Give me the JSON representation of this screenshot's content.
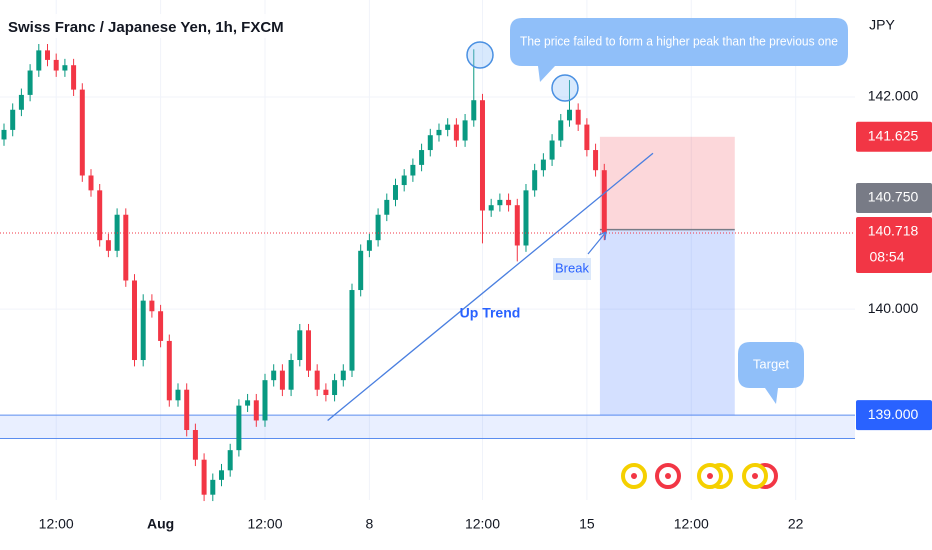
{
  "chart_data": {
    "type": "candlestick",
    "title": "Swiss Franc / Japanese Yen, 1h, FXCM",
    "currency": "JPY",
    "xlim": [
      -0.46,
      97.82
    ],
    "ylim": [
      138.2,
      142.915
    ],
    "grid": true,
    "xticks": [
      {
        "value": 6,
        "label": "12:00"
      },
      {
        "value": 18,
        "label": "Aug"
      },
      {
        "value": 30,
        "label": "12:00"
      },
      {
        "value": 42,
        "label": "8"
      },
      {
        "value": 55,
        "label": "12:00"
      },
      {
        "value": 67,
        "label": "15"
      },
      {
        "value": 79,
        "label": "12:00"
      },
      {
        "value": 91,
        "label": "22"
      }
    ],
    "yticks": [
      {
        "value": 140,
        "label": "140.000"
      },
      {
        "value": 142,
        "label": "142.000"
      }
    ],
    "up_color": "#089981",
    "down_color": "#f23645",
    "x": [
      0,
      1,
      2,
      3,
      4,
      5,
      6,
      7,
      8,
      9,
      10,
      11,
      12,
      13,
      14,
      15,
      16,
      17,
      18,
      19,
      20,
      21,
      22,
      23,
      24,
      25,
      26,
      27,
      28,
      29,
      30,
      31,
      32,
      33,
      34,
      35,
      36,
      37,
      38,
      39,
      40,
      41,
      42,
      43,
      44,
      45,
      46,
      47,
      48,
      49,
      50,
      51,
      52,
      53,
      54,
      55,
      56,
      57,
      58,
      59,
      60,
      61,
      62,
      63,
      64,
      65,
      66,
      67,
      68,
      69
    ],
    "ohlc": {
      "open": [
        141.6,
        141.69,
        141.88,
        142.02,
        142.25,
        142.44,
        142.35,
        142.25,
        142.3,
        142.07,
        141.26,
        141.12,
        140.65,
        140.55,
        140.89,
        140.27,
        139.52,
        140.08,
        139.98,
        139.7,
        139.14,
        139.24,
        138.86,
        138.58,
        138.25,
        138.39,
        138.48,
        138.67,
        139.09,
        139.14,
        138.95,
        139.33,
        139.42,
        139.24,
        139.52,
        139.8,
        139.42,
        139.24,
        139.19,
        139.33,
        139.42,
        140.18,
        140.55,
        140.65,
        140.89,
        141.03,
        141.17,
        141.26,
        141.36,
        141.5,
        141.64,
        141.69,
        141.74,
        141.59,
        141.78,
        141.97,
        140.93,
        140.98,
        141.03,
        140.98,
        140.6,
        141.12,
        141.31,
        141.41,
        141.59,
        141.78,
        141.88,
        141.74,
        141.5,
        141.31
      ],
      "high": [
        141.75,
        141.94,
        142.08,
        142.31,
        142.5,
        142.5,
        142.41,
        142.36,
        142.36,
        142.13,
        141.32,
        141.18,
        140.71,
        140.95,
        140.95,
        140.33,
        140.14,
        140.14,
        140.04,
        139.76,
        139.3,
        139.3,
        138.92,
        138.64,
        138.45,
        138.54,
        138.73,
        139.15,
        139.2,
        139.2,
        139.39,
        139.48,
        139.48,
        139.58,
        139.86,
        139.86,
        139.48,
        139.3,
        139.39,
        139.48,
        140.24,
        140.61,
        140.71,
        140.95,
        141.09,
        141.23,
        141.32,
        141.42,
        141.56,
        141.7,
        141.75,
        141.8,
        141.8,
        141.84,
        142.45,
        142.03,
        141.04,
        141.09,
        141.09,
        141.04,
        141.18,
        141.37,
        141.47,
        141.65,
        141.84,
        142.16,
        141.94,
        141.8,
        141.56,
        141.37
      ],
      "low": [
        141.54,
        141.63,
        141.82,
        141.96,
        142.19,
        142.29,
        142.19,
        142.19,
        142.01,
        141.2,
        141.06,
        140.59,
        140.49,
        140.49,
        140.21,
        139.46,
        139.46,
        139.92,
        139.64,
        139.08,
        139.08,
        138.8,
        138.52,
        138.19,
        138.19,
        138.33,
        138.42,
        138.61,
        139.03,
        138.89,
        138.89,
        139.27,
        139.18,
        139.18,
        139.46,
        139.36,
        139.18,
        139.13,
        139.13,
        139.27,
        139.36,
        140.12,
        140.49,
        140.59,
        140.83,
        140.97,
        141.11,
        141.2,
        141.3,
        141.44,
        141.58,
        141.63,
        141.53,
        141.53,
        141.72,
        140.62,
        140.87,
        140.92,
        140.92,
        140.45,
        140.54,
        141.06,
        141.25,
        141.35,
        141.53,
        141.72,
        141.68,
        141.44,
        141.25,
        140.65
      ],
      "close": [
        141.69,
        141.88,
        142.02,
        142.25,
        142.44,
        142.35,
        142.25,
        142.3,
        142.07,
        141.26,
        141.12,
        140.65,
        140.55,
        140.89,
        140.27,
        139.52,
        140.08,
        139.98,
        139.7,
        139.14,
        139.24,
        138.86,
        138.58,
        138.25,
        138.39,
        138.48,
        138.67,
        139.09,
        139.14,
        138.95,
        139.33,
        139.42,
        139.24,
        139.52,
        139.8,
        139.42,
        139.24,
        139.19,
        139.33,
        139.42,
        140.18,
        140.55,
        140.65,
        140.89,
        141.03,
        141.17,
        141.26,
        141.36,
        141.5,
        141.64,
        141.69,
        141.74,
        141.59,
        141.78,
        141.97,
        140.93,
        140.98,
        141.03,
        140.98,
        140.6,
        141.12,
        141.31,
        141.41,
        141.59,
        141.78,
        141.88,
        141.74,
        141.5,
        141.31,
        140.72
      ]
    },
    "price_labels": [
      {
        "value": 141.625,
        "label": "141.625",
        "color": "#f23645"
      },
      {
        "value": 140.75,
        "label": "140.750",
        "color": "#787b86"
      },
      {
        "value": 140.718,
        "label": "140.718",
        "color": "#f23645"
      },
      {
        "value": 139,
        "label": "139.000",
        "color": "#2962ff"
      }
    ],
    "countdown": "08:54",
    "position": {
      "stop": 141.625,
      "entry": 140.75,
      "target": 139,
      "x": [
        68.5,
        84
      ]
    },
    "support_zone": [
      138.78,
      139
    ],
    "trend_line": {
      "label": "Up Trend",
      "x": [
        37.2,
        74.6
      ],
      "y": [
        138.95,
        141.47
      ]
    },
    "annotations": {
      "callout": "The price failed to form a higher peak than the previous one",
      "break": "Break",
      "target": "Target"
    }
  }
}
